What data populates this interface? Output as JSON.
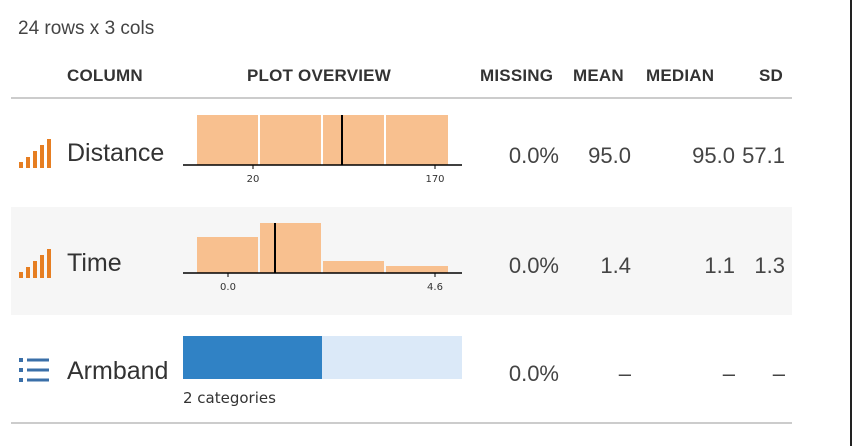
{
  "summary": "24 rows x 3 cols",
  "headers": {
    "column": "COLUMN",
    "plot": "PLOT OVERVIEW",
    "missing": "MISSING",
    "mean": "MEAN",
    "median": "MEDIAN",
    "sd": "SD"
  },
  "colors": {
    "numeric_bar": "#f8c08f",
    "numeric_icon": "#e67e22",
    "category_dark": "#3082c5",
    "category_light": "#dbe9f8",
    "category_icon": "#3a6fa8"
  },
  "rows": [
    {
      "icon": "numeric-bars-icon",
      "name": "Distance",
      "missing": "0.0%",
      "mean": "95.0",
      "median": "95.0",
      "sd": "57.1",
      "plot": {
        "type": "histogram",
        "x_ticks": [
          "20",
          "170"
        ],
        "bin_heights": [
          1,
          1,
          1,
          1
        ],
        "marker_value": 95.0
      }
    },
    {
      "icon": "numeric-bars-icon",
      "name": "Time",
      "missing": "0.0%",
      "mean": "1.4",
      "median": "1.1",
      "sd": "1.3",
      "plot": {
        "type": "histogram",
        "x_ticks": [
          "0.0",
          "4.6"
        ],
        "bin_heights": [
          0.68,
          1.0,
          0.24,
          0.14
        ],
        "marker_value": 1.1
      }
    },
    {
      "icon": "list-icon",
      "name": "Armband",
      "missing": "0.0%",
      "mean": "–",
      "median": "–",
      "sd": "–",
      "plot": {
        "type": "category",
        "label": "2 categories",
        "shares": [
          0.5,
          0.5
        ]
      }
    }
  ]
}
